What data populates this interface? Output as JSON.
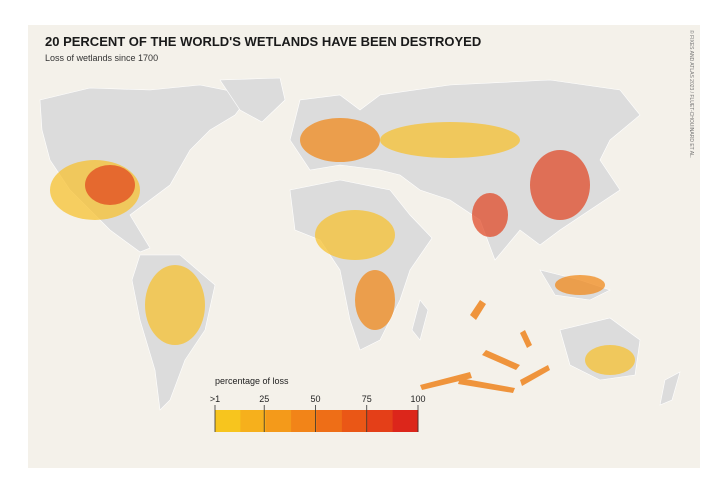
{
  "header": {
    "title": "20 PERCENT OF THE WORLD'S WETLANDS HAVE BEEN DESTROYED",
    "subtitle": "Loss of wetlands since 1700",
    "credit": "© FIXES AND ATLAS 2023 / FLUET-CHOUINARD ET AL."
  },
  "legend": {
    "title": "percentage of loss",
    "range": [
      1,
      100
    ],
    "ticks": [
      {
        "value": 1,
        "label": ">1"
      },
      25,
      50,
      75,
      100
    ],
    "colors": [
      "#f7c51e",
      "#f6b01c",
      "#f49a1a",
      "#f28418",
      "#ee6e17",
      "#ea5716",
      "#e43f18",
      "#dc261b"
    ]
  }
}
